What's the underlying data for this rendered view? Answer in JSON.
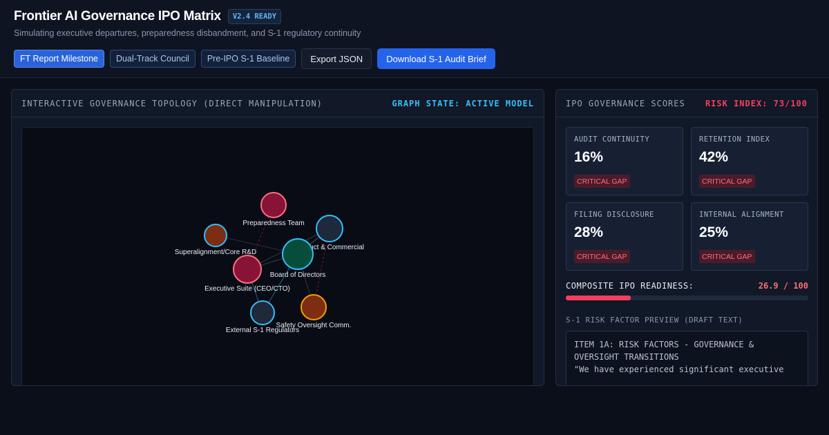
{
  "header": {
    "title": "Frontier AI Governance IPO Matrix",
    "version_badge": "V2.4 READY",
    "subtitle": "Simulating executive departures, preparedness disbandment, and S-1 regulatory continuity"
  },
  "toolbar": {
    "chips": [
      {
        "label": "FT Report Milestone",
        "active": true
      },
      {
        "label": "Dual-Track Council",
        "active": false
      },
      {
        "label": "Pre-IPO S-1 Baseline",
        "active": false
      }
    ],
    "export_label": "Export JSON",
    "download_label": "Download S-1 Audit Brief"
  },
  "topology": {
    "title": "INTERACTIVE GOVERNANCE TOPOLOGY (DIRECT MANIPULATION)",
    "state": "GRAPH STATE: ACTIVE MODEL",
    "nodes": [
      {
        "id": "prep",
        "label": "Preparedness Team",
        "fill": "#881337",
        "stroke": "#fb7185"
      },
      {
        "id": "product",
        "label": "Product & Commercial",
        "fill": "#1e293b",
        "stroke": "#38bdf8"
      },
      {
        "id": "superalign",
        "label": "Superalignment/Core R&D",
        "fill": "#7c2d12",
        "stroke": "#38bdf8"
      },
      {
        "id": "board",
        "label": "Board of Directors",
        "fill": "#064e3b",
        "stroke": "#38bdf8"
      },
      {
        "id": "exec",
        "label": "Executive Suite (CEO/CTO)",
        "fill": "#881337",
        "stroke": "#fb7185"
      },
      {
        "id": "safety",
        "label": "Safety Oversight Comm.",
        "fill": "#7c2d12",
        "stroke": "#f59e0b"
      },
      {
        "id": "regulators",
        "label": "External S-1 Regulators",
        "fill": "#1e293b",
        "stroke": "#38bdf8"
      }
    ]
  },
  "scores": {
    "title": "IPO GOVERNANCE SCORES",
    "risk_index": "RISK INDEX: 73/100",
    "cards": [
      {
        "label": "AUDIT CONTINUITY",
        "value": "16%",
        "badge": "CRITICAL GAP"
      },
      {
        "label": "RETENTION INDEX",
        "value": "42%",
        "badge": "CRITICAL GAP"
      },
      {
        "label": "FILING DISCLOSURE",
        "value": "28%",
        "badge": "CRITICAL GAP"
      },
      {
        "label": "INTERNAL ALIGNMENT",
        "value": "25%",
        "badge": "CRITICAL GAP"
      }
    ],
    "composite_label": "COMPOSITE IPO READINESS:",
    "composite_value": "26.9 / 100",
    "composite_fraction": 0.269,
    "preview_label": "S-1 RISK FACTOR PREVIEW (DRAFT TEXT)",
    "preview_heading": "ITEM 1A: RISK FACTORS - GOVERNANCE & OVERSIGHT TRANSITIONS",
    "preview_quote": "\"We have experienced significant executive"
  },
  "colors": {
    "accent": "#2563eb",
    "risk": "#f43f5e",
    "state": "#38bdf8"
  }
}
